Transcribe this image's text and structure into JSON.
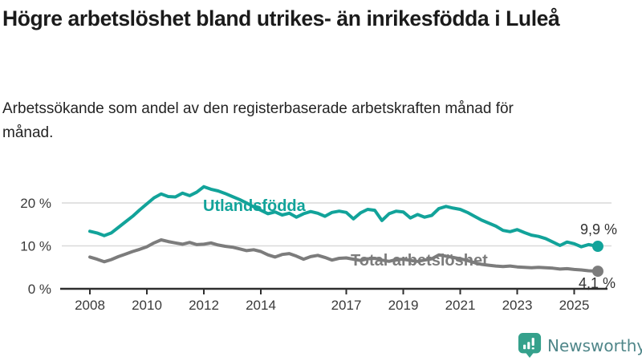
{
  "chart_data": {
    "type": "line",
    "title": "Högre arbetslöshet bland utrikes- än inrikesfödda i Luleå",
    "subtitle": "Arbetssökande som andel av den registerbaserade arbetskraften månad för månad.",
    "grid": true,
    "legend_position": "inline-labels",
    "x_axis": {
      "unit": "year",
      "ticks": [
        2008,
        2010,
        2012,
        2014,
        2017,
        2019,
        2021,
        2023,
        2025
      ],
      "range": [
        2007.9,
        2026.1
      ]
    },
    "y_axis": {
      "ticks": [
        0,
        10,
        20
      ],
      "tick_suffix": " %",
      "range": [
        0,
        25
      ]
    },
    "colors": {
      "grid": "#d9d9d9",
      "axis": "#2e2e2e",
      "tick_text": "#3a3a3a",
      "end_label_text": "#333333"
    },
    "series": [
      {
        "name": "Utlandsfödda",
        "label": "Utlandsfödda",
        "color": "#12a39a",
        "end_label": "9,9 %",
        "end_value": 9.9,
        "points": [
          [
            2008.0,
            13.4
          ],
          [
            2008.25,
            13.0
          ],
          [
            2008.5,
            12.4
          ],
          [
            2008.75,
            13.0
          ],
          [
            2009.0,
            14.3
          ],
          [
            2009.25,
            15.6
          ],
          [
            2009.5,
            16.9
          ],
          [
            2009.75,
            18.4
          ],
          [
            2010.0,
            19.8
          ],
          [
            2010.25,
            21.2
          ],
          [
            2010.5,
            22.1
          ],
          [
            2010.75,
            21.5
          ],
          [
            2011.0,
            21.4
          ],
          [
            2011.25,
            22.3
          ],
          [
            2011.5,
            21.7
          ],
          [
            2011.75,
            22.5
          ],
          [
            2012.0,
            23.8
          ],
          [
            2012.25,
            23.2
          ],
          [
            2012.5,
            22.8
          ],
          [
            2012.75,
            22.2
          ],
          [
            2013.0,
            21.5
          ],
          [
            2013.25,
            20.8
          ],
          [
            2013.5,
            20.0
          ],
          [
            2013.75,
            19.1
          ],
          [
            2014.0,
            18.3
          ],
          [
            2014.25,
            17.5
          ],
          [
            2014.5,
            17.9
          ],
          [
            2014.75,
            17.2
          ],
          [
            2015.0,
            17.6
          ],
          [
            2015.25,
            16.7
          ],
          [
            2015.5,
            17.5
          ],
          [
            2015.75,
            18.0
          ],
          [
            2016.0,
            17.6
          ],
          [
            2016.25,
            16.9
          ],
          [
            2016.5,
            17.8
          ],
          [
            2016.75,
            18.1
          ],
          [
            2017.0,
            17.8
          ],
          [
            2017.25,
            16.3
          ],
          [
            2017.5,
            17.7
          ],
          [
            2017.75,
            18.5
          ],
          [
            2018.0,
            18.3
          ],
          [
            2018.25,
            15.9
          ],
          [
            2018.5,
            17.5
          ],
          [
            2018.75,
            18.1
          ],
          [
            2019.0,
            17.9
          ],
          [
            2019.25,
            16.5
          ],
          [
            2019.5,
            17.3
          ],
          [
            2019.75,
            16.7
          ],
          [
            2020.0,
            17.1
          ],
          [
            2020.25,
            18.7
          ],
          [
            2020.5,
            19.2
          ],
          [
            2020.75,
            18.8
          ],
          [
            2021.0,
            18.5
          ],
          [
            2021.25,
            17.8
          ],
          [
            2021.5,
            16.9
          ],
          [
            2021.75,
            16.0
          ],
          [
            2022.0,
            15.3
          ],
          [
            2022.25,
            14.6
          ],
          [
            2022.5,
            13.6
          ],
          [
            2022.75,
            13.3
          ],
          [
            2023.0,
            13.8
          ],
          [
            2023.25,
            13.1
          ],
          [
            2023.5,
            12.5
          ],
          [
            2023.75,
            12.2
          ],
          [
            2024.0,
            11.7
          ],
          [
            2024.25,
            10.9
          ],
          [
            2024.5,
            10.1
          ],
          [
            2024.75,
            10.9
          ],
          [
            2025.0,
            10.5
          ],
          [
            2025.25,
            9.8
          ],
          [
            2025.5,
            10.3
          ],
          [
            2025.83,
            9.9
          ]
        ]
      },
      {
        "name": "Total arbetslöshet",
        "label": "Total arbetslöshet",
        "color": "#7c7c7c",
        "end_label": "4,1 %",
        "end_value": 4.1,
        "points": [
          [
            2008.0,
            7.4
          ],
          [
            2008.25,
            6.9
          ],
          [
            2008.5,
            6.3
          ],
          [
            2008.75,
            6.8
          ],
          [
            2009.0,
            7.5
          ],
          [
            2009.25,
            8.1
          ],
          [
            2009.5,
            8.7
          ],
          [
            2009.75,
            9.2
          ],
          [
            2010.0,
            9.8
          ],
          [
            2010.25,
            10.7
          ],
          [
            2010.5,
            11.4
          ],
          [
            2010.75,
            11.0
          ],
          [
            2011.0,
            10.7
          ],
          [
            2011.25,
            10.4
          ],
          [
            2011.5,
            10.8
          ],
          [
            2011.75,
            10.3
          ],
          [
            2012.0,
            10.4
          ],
          [
            2012.25,
            10.7
          ],
          [
            2012.5,
            10.2
          ],
          [
            2012.75,
            9.9
          ],
          [
            2013.0,
            9.7
          ],
          [
            2013.25,
            9.3
          ],
          [
            2013.5,
            8.9
          ],
          [
            2013.75,
            9.1
          ],
          [
            2014.0,
            8.7
          ],
          [
            2014.25,
            7.9
          ],
          [
            2014.5,
            7.4
          ],
          [
            2014.75,
            8.0
          ],
          [
            2015.0,
            8.2
          ],
          [
            2015.25,
            7.6
          ],
          [
            2015.5,
            6.9
          ],
          [
            2015.75,
            7.5
          ],
          [
            2016.0,
            7.8
          ],
          [
            2016.25,
            7.3
          ],
          [
            2016.5,
            6.7
          ],
          [
            2016.75,
            7.1
          ],
          [
            2017.0,
            7.2
          ],
          [
            2017.25,
            6.9
          ],
          [
            2017.5,
            6.6
          ],
          [
            2017.75,
            7.0
          ],
          [
            2018.0,
            7.1
          ],
          [
            2018.25,
            6.7
          ],
          [
            2018.5,
            6.4
          ],
          [
            2018.75,
            6.8
          ],
          [
            2019.0,
            6.9
          ],
          [
            2019.25,
            6.6
          ],
          [
            2019.5,
            6.4
          ],
          [
            2019.75,
            6.7
          ],
          [
            2020.0,
            7.0
          ],
          [
            2020.25,
            7.9
          ],
          [
            2020.5,
            7.6
          ],
          [
            2020.75,
            7.3
          ],
          [
            2021.0,
            7.0
          ],
          [
            2021.25,
            6.6
          ],
          [
            2021.5,
            6.1
          ],
          [
            2021.75,
            5.7
          ],
          [
            2022.0,
            5.5
          ],
          [
            2022.25,
            5.3
          ],
          [
            2022.5,
            5.2
          ],
          [
            2022.75,
            5.3
          ],
          [
            2023.0,
            5.1
          ],
          [
            2023.25,
            5.0
          ],
          [
            2023.5,
            4.9
          ],
          [
            2023.75,
            5.0
          ],
          [
            2024.0,
            4.9
          ],
          [
            2024.25,
            4.8
          ],
          [
            2024.5,
            4.6
          ],
          [
            2024.75,
            4.7
          ],
          [
            2025.0,
            4.5
          ],
          [
            2025.25,
            4.4
          ],
          [
            2025.5,
            4.2
          ],
          [
            2025.83,
            4.1
          ]
        ]
      }
    ]
  },
  "footer": {
    "brand": "Newsworthy",
    "brand_text_color": "#4f8689",
    "brand_icon_color": "#35a18c"
  }
}
